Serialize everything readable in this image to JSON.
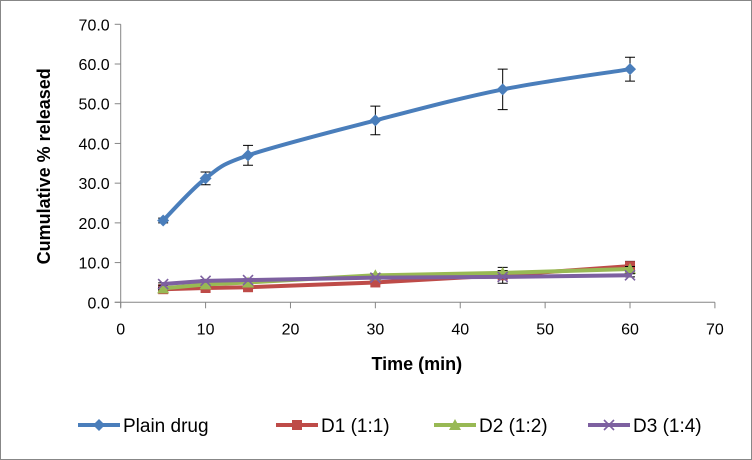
{
  "chart_data": {
    "type": "line",
    "title": "",
    "xlabel": "Time (min)",
    "ylabel": "Cumulative % released",
    "xlim": [
      0,
      70
    ],
    "ylim": [
      0,
      70
    ],
    "x_ticks": [
      0,
      10,
      20,
      30,
      40,
      50,
      60,
      70
    ],
    "x_tick_labels": [
      "0",
      "10",
      "20",
      "30",
      "40",
      "50",
      "60",
      "70"
    ],
    "y_ticks": [
      0,
      10,
      20,
      30,
      40,
      50,
      60,
      70
    ],
    "y_tick_labels": [
      "0.0",
      "10.0",
      "20.0",
      "30.0",
      "40.0",
      "50.0",
      "60.0",
      "70.0"
    ],
    "grid": false,
    "legend_position": "bottom",
    "x": [
      5,
      10,
      15,
      30,
      45,
      60
    ],
    "series": [
      {
        "name": "Plain drug",
        "color": "#4A7EBB",
        "marker": "diamond",
        "smooth": true,
        "values": [
          20.6,
          31.2,
          37.0,
          45.8,
          53.6,
          58.7
        ],
        "errors": [
          0.6,
          1.6,
          2.5,
          3.6,
          5.1,
          3.0
        ]
      },
      {
        "name": "D1 (1:1)",
        "color": "#BE4B48",
        "marker": "square",
        "smooth": false,
        "values": [
          3.3,
          3.6,
          3.8,
          5.0,
          6.8,
          9.1
        ],
        "errors": [
          0.3,
          0.3,
          0.3,
          0.4,
          2.0,
          1.2
        ]
      },
      {
        "name": "D2 (1:2)",
        "color": "#98B954",
        "marker": "triangle",
        "smooth": false,
        "values": [
          3.5,
          4.5,
          5.0,
          6.8,
          7.4,
          8.4
        ],
        "errors": [
          0.3,
          0.3,
          0.3,
          0.4,
          0.6,
          0.6
        ]
      },
      {
        "name": "D3 (1:4)",
        "color": "#7D60A0",
        "marker": "x",
        "smooth": false,
        "values": [
          4.6,
          5.4,
          5.6,
          6.2,
          6.4,
          6.8
        ],
        "errors": [
          0.3,
          0.3,
          0.3,
          0.3,
          0.4,
          0.4
        ]
      }
    ]
  },
  "axis": {
    "x_title": "Time (min)",
    "y_title": "Cumulative % released"
  },
  "legend": [
    {
      "label": "Plain drug"
    },
    {
      "label": "D1 (1:1)"
    },
    {
      "label": "D2 (1:2)"
    },
    {
      "label": "D3 (1:4)"
    }
  ]
}
